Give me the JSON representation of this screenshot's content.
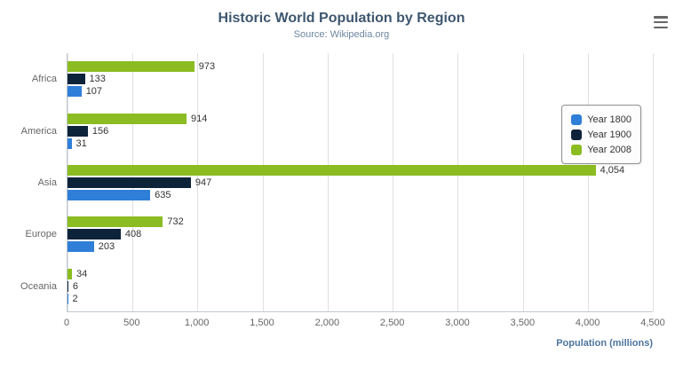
{
  "header": {
    "title": "Historic World Population by Region",
    "subtitle": "Source: Wikipedia.org"
  },
  "export_menu": {
    "icon": "hamburger-menu-icon"
  },
  "chart_data": {
    "type": "bar",
    "orientation": "horizontal",
    "title": "Historic World Population by Region",
    "subtitle": "Source: Wikipedia.org",
    "categories": [
      "Africa",
      "America",
      "Asia",
      "Europe",
      "Oceania"
    ],
    "series": [
      {
        "name": "Year 1800",
        "color": "#2f7ed8",
        "values": [
          107,
          31,
          635,
          203,
          2
        ]
      },
      {
        "name": "Year 1900",
        "color": "#0d233a",
        "values": [
          133,
          156,
          947,
          408,
          6
        ]
      },
      {
        "name": "Year 2008",
        "color": "#8bbc21",
        "values": [
          973,
          914,
          4054,
          732,
          34
        ]
      }
    ],
    "bar_display_order_top_to_bottom": [
      "Year 2008",
      "Year 1900",
      "Year 1800"
    ],
    "xlabel": "Population (millions)",
    "xlim": [
      0,
      4500
    ],
    "tick_labels": [
      "0",
      "500",
      "1,000",
      "1,500",
      "2,000",
      "2,500",
      "3,000",
      "3,500",
      "4,000",
      "4,500"
    ],
    "grid": true,
    "data_labels": true,
    "legend": {
      "position": "right",
      "items": [
        "Year 1800",
        "Year 1900",
        "Year 2008"
      ]
    }
  },
  "colors": {
    "title": "#3e576f",
    "subtitle": "#6d869f",
    "tick_label": "#666666",
    "category_label": "#666666",
    "data_label": "#333333",
    "xlabel": "#4d759e",
    "gridline": "#e0e0e0",
    "axis_line": "#c0c8d0",
    "legend_border": "#909090",
    "background": "#ffffff"
  }
}
